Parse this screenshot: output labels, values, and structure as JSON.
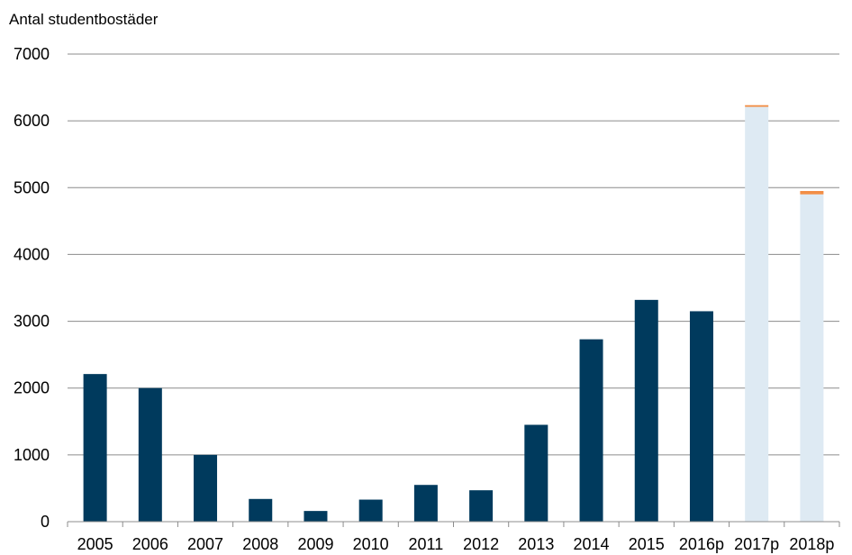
{
  "chart_data": {
    "type": "bar",
    "title": "Antal studentbostäder",
    "xlabel": "",
    "ylabel": "",
    "ylim": [
      0,
      7000
    ],
    "yticks": [
      0,
      1000,
      2000,
      3000,
      4000,
      5000,
      6000,
      7000
    ],
    "grid": true,
    "legend": "none",
    "categories": [
      "2005",
      "2006",
      "2007",
      "2008",
      "2009",
      "2010",
      "2011",
      "2012",
      "2013",
      "2014",
      "2015",
      "2016p",
      "2017p",
      "2018p"
    ],
    "series": [
      {
        "color": "#003a5d",
        "values": [
          2210,
          2000,
          1000,
          340,
          160,
          330,
          550,
          470,
          1450,
          2730,
          3320,
          3150,
          0,
          0
        ]
      },
      {
        "color": "#deeaf3",
        "values": [
          0,
          0,
          0,
          0,
          0,
          0,
          0,
          0,
          0,
          0,
          0,
          0,
          6210,
          4900
        ]
      },
      {
        "color": "#f28e46",
        "values": [
          0,
          0,
          0,
          0,
          0,
          0,
          0,
          0,
          0,
          0,
          0,
          0,
          25,
          50
        ]
      }
    ]
  }
}
